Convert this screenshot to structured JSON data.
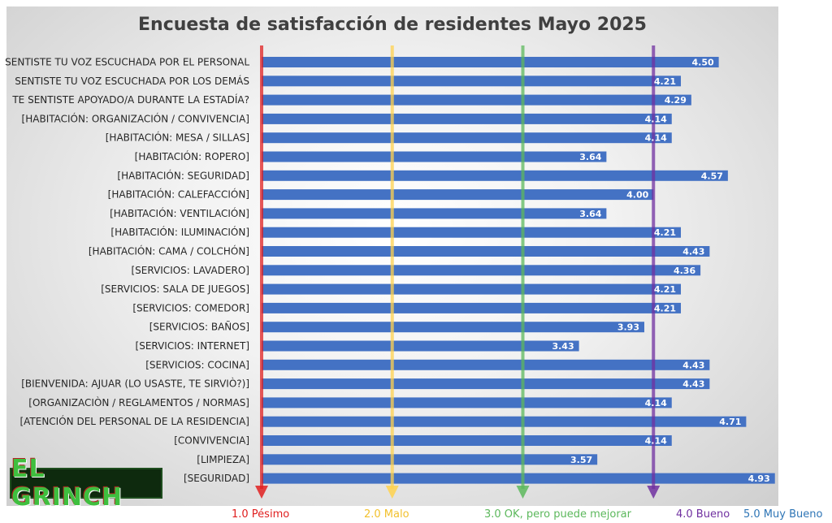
{
  "chart_data": {
    "type": "bar",
    "orientation": "horizontal",
    "title": "Encuesta de satisfacción de residentes Mayo 2025",
    "categories": [
      "SENTISTE TU VOZ ESCUCHADA POR EL PERSONAL",
      "SENTISTE TU VOZ ESCUCHADA POR LOS DEMÁS",
      "TE SENTISTE APOYADO/A DURANTE LA ESTADÍA?",
      "[HABITACIÓN: ORGANIZACIÓN / CONVIVENCIA]",
      "[HABITACIÓN: MESA / SILLAS]",
      "[HABITACIÓN: ROPERO]",
      "[HABITACIÓN: SEGURIDAD]",
      "[HABITACIÓN: CALEFACCIÓN]",
      "[HABITACIÓN: VENTILACIÓN]",
      "[HABITACIÓN: ILUMINACIÓN]",
      "[HABITACIÓN: CAMA / COLCHÓN]",
      "[SERVICIOS: LAVADERO]",
      "[SERVICIOS: SALA DE JUEGOS]",
      "[SERVICIOS: COMEDOR]",
      "[SERVICIOS: BAÑOS]",
      "[SERVICIOS: INTERNET]",
      "[SERVICIOS: COCINA]",
      "[BIENVENIDA: AJUAR (LO USASTE, TE SIRVIÒ?)]",
      "[ORGANIZACIÒN / REGLAMENTOS / NORMAS]",
      "[ATENCIÓN DEL PERSONAL DE LA RESIDENCIA]",
      "[CONVIVENCIA]",
      "[LIMPIEZA]",
      "[SEGURIDAD]"
    ],
    "values": [
      4.5,
      4.21,
      4.29,
      4.14,
      4.14,
      3.64,
      4.57,
      4.0,
      3.64,
      4.21,
      4.43,
      4.36,
      4.21,
      4.21,
      3.93,
      3.43,
      4.43,
      4.43,
      4.14,
      4.71,
      4.14,
      3.57,
      4.93
    ],
    "value_labels": [
      "4.50",
      "4.21",
      "4.29",
      "4.14",
      "4.14",
      "3.64",
      "4.57",
      "4.00",
      "3.64",
      "4.21",
      "4.43",
      "4.36",
      "4.21",
      "4.21",
      "3.93",
      "3.43",
      "4.43",
      "4.43",
      "4.14",
      "4.71",
      "4.14",
      "3.57",
      "4.93"
    ],
    "xlim": [
      1,
      5
    ],
    "bar_color": "#4472c4",
    "reference_lines": [
      {
        "value": 1.0,
        "label": "1.0 Pésimo",
        "color": "#e02020"
      },
      {
        "value": 2.0,
        "label": "2.0 Malo",
        "color": "#ffd24d"
      },
      {
        "value": 3.0,
        "label": "3.0 OK, pero puede mejorar",
        "color": "#5cb85c"
      },
      {
        "value": 4.0,
        "label": "4.0 Bueno",
        "color": "#7030a0"
      },
      {
        "value": 5.0,
        "label": "5.0 Muy Bueno",
        "color": "#2e75b6"
      }
    ],
    "grid": false,
    "legend_position": "bottom"
  },
  "logo": {
    "text": "EL GRINCH"
  }
}
